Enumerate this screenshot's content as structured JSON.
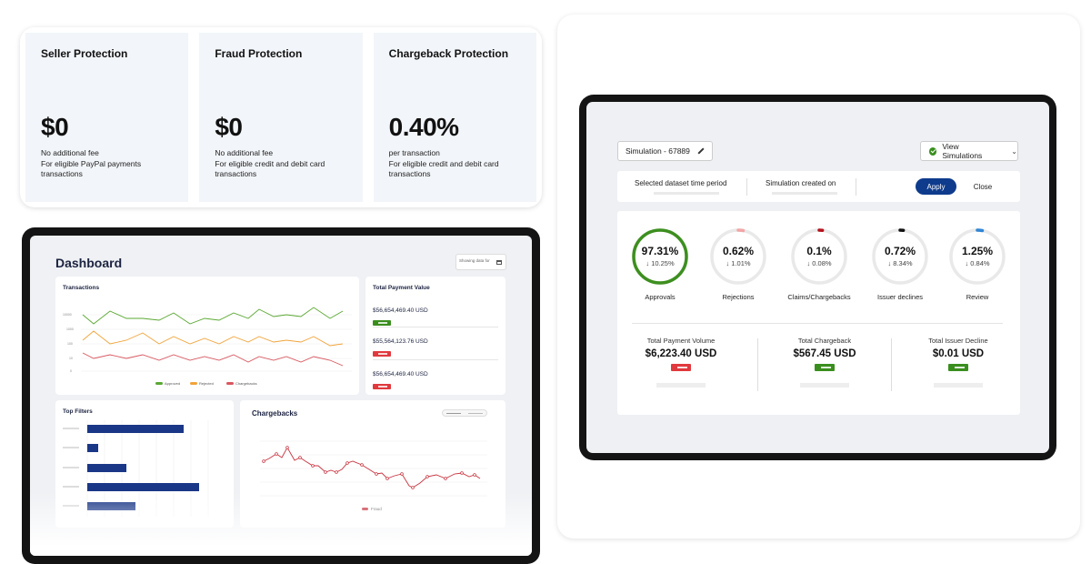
{
  "pricing": [
    {
      "title": "Seller Protection",
      "price": "$0",
      "line1": "No additional fee",
      "line2": "For eligible PayPal payments transactions"
    },
    {
      "title": "Fraud Protection",
      "price": "$0",
      "line1": "No additional fee",
      "line2": "For eligible credit and debit card transactions"
    },
    {
      "title": "Chargeback Protection",
      "price": "0.40%",
      "line1": "per transaction",
      "line2": "For eligible credit and debit card transactions"
    }
  ],
  "dashboard": {
    "title": "Dashboard",
    "showing_label": "Showing data for",
    "transactions": {
      "title": "Transactions",
      "ytick_labels": [
        "10000",
        "1000",
        "100",
        "10",
        "0"
      ],
      "legend": [
        "Approved",
        "Rejected",
        "Chargebacks"
      ]
    },
    "total_payment_value": {
      "title": "Total Payment Value",
      "items": [
        {
          "value": "$56,654,469.40 USD",
          "badge": "green"
        },
        {
          "value": "$55,564,123.76 USD",
          "badge": "red"
        },
        {
          "value": "$56,654,469.40 USD",
          "badge": "red"
        }
      ]
    },
    "top_filters": {
      "title": "Top Filters"
    },
    "chargebacks": {
      "title": "Chargebacks",
      "legend": "Fraud"
    }
  },
  "colors": {
    "approved": "#5aa832",
    "rejected": "#f0a43a",
    "chargebacks": "#d8575f",
    "bar_navy": "#1a3787",
    "accent_blue": "#0e3b8c",
    "success_green": "#3a8e1e",
    "danger_red": "#e0393e"
  },
  "simulation": {
    "chip_label": "Simulation - 67889",
    "view_button": "View Simulations",
    "filter": {
      "dataset_label": "Selected dataset time period",
      "created_label": "Simulation created on",
      "apply": "Apply",
      "close": "Close"
    },
    "metrics": [
      {
        "value": "97.31%",
        "delta": "↓ 10.25%",
        "label": "Approvals",
        "progress": 1.0,
        "color": "#3d8f1f"
      },
      {
        "value": "0.62%",
        "delta": "↓ 1.01%",
        "label": "Rejections",
        "progress": 0.03,
        "color": "#f2a6a6"
      },
      {
        "value": "0.1%",
        "delta": "↓ 0.08%",
        "label": "Claims/Chargebacks",
        "progress": 0.02,
        "color": "#b5121b"
      },
      {
        "value": "0.72%",
        "delta": "↓ 8.34%",
        "label": "Issuer declines",
        "progress": 0.02,
        "color": "#111111"
      },
      {
        "value": "1.25%",
        "delta": "↓ 0.84%",
        "label": "Review",
        "progress": 0.03,
        "color": "#2f86d6"
      }
    ],
    "totals": [
      {
        "label": "Total Payment Volume",
        "value": "$6,223.40 USD",
        "badge": "red"
      },
      {
        "label": "Total Chargeback",
        "value": "$567.45 USD",
        "badge": "green"
      },
      {
        "label": "Total Issuer Decline",
        "value": "$0.01 USD",
        "badge": "green"
      }
    ]
  }
}
